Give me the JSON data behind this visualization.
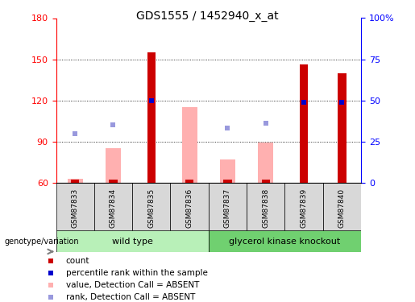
{
  "title": "GDS1555 / 1452940_x_at",
  "samples": [
    "GSM87833",
    "GSM87834",
    "GSM87835",
    "GSM87836",
    "GSM87837",
    "GSM87838",
    "GSM87839",
    "GSM87840"
  ],
  "count_values": [
    62,
    62,
    155,
    62,
    62,
    62,
    146,
    140
  ],
  "count_present": [
    false,
    false,
    true,
    false,
    false,
    false,
    true,
    true
  ],
  "pink_bar_values": [
    63,
    85,
    null,
    115,
    77,
    89,
    null,
    null
  ],
  "blue_square_values": [
    30,
    35,
    50,
    null,
    33,
    36,
    49,
    49
  ],
  "blue_sq_present": [
    false,
    false,
    true,
    false,
    false,
    false,
    true,
    true
  ],
  "ylim_left": [
    60,
    180
  ],
  "ylim_right": [
    0,
    100
  ],
  "yticks_left": [
    60,
    90,
    120,
    150,
    180
  ],
  "yticks_right": [
    0,
    25,
    50,
    75,
    100
  ],
  "right_tick_labels": [
    "0",
    "25",
    "50",
    "75",
    "100%"
  ],
  "bar_color_present": "#cc0000",
  "bar_color_absent": "#ffb0b0",
  "blue_sq_color_present": "#0000cc",
  "blue_sq_color_absent": "#9999dd",
  "wild_type_color": "#b8f0b8",
  "knockout_color": "#70d070",
  "sample_box_color": "#d8d8d8",
  "plot_bg": "#ffffff",
  "grid_color": "#000000",
  "dotted_lines": [
    90,
    120,
    150
  ]
}
